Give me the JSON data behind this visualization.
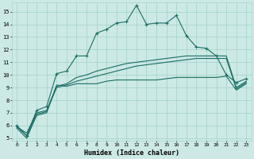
{
  "title": "",
  "xlabel": "Humidex (Indice chaleur)",
  "xlim": [
    -0.5,
    23.5
  ],
  "ylim": [
    4.8,
    15.7
  ],
  "yticks": [
    5,
    6,
    7,
    8,
    9,
    10,
    11,
    12,
    13,
    14,
    15
  ],
  "xticks": [
    0,
    1,
    2,
    3,
    4,
    5,
    6,
    7,
    8,
    9,
    10,
    11,
    12,
    13,
    14,
    15,
    16,
    17,
    18,
    19,
    20,
    21,
    22,
    23
  ],
  "bg_color": "#cce9e5",
  "grid_color": "#aad4ce",
  "line_color": "#1a6e64",
  "series": {
    "max": [
      6.0,
      5.2,
      7.2,
      7.5,
      10.1,
      10.3,
      11.5,
      11.5,
      13.3,
      13.6,
      14.1,
      14.2,
      15.5,
      14.0,
      14.1,
      14.1,
      14.7,
      13.1,
      12.2,
      12.1,
      11.5,
      10.0,
      9.4,
      9.7
    ],
    "min": [
      5.8,
      5.0,
      6.8,
      7.0,
      9.2,
      9.1,
      9.3,
      9.3,
      9.3,
      9.5,
      9.6,
      9.6,
      9.6,
      9.6,
      9.6,
      9.7,
      9.8,
      9.8,
      9.8,
      9.8,
      9.8,
      9.9,
      8.8,
      9.3
    ],
    "mean1": [
      5.9,
      5.4,
      7.0,
      7.2,
      9.1,
      9.3,
      9.8,
      10.0,
      10.3,
      10.5,
      10.7,
      10.9,
      11.0,
      11.1,
      11.2,
      11.3,
      11.4,
      11.5,
      11.5,
      11.5,
      11.5,
      11.5,
      9.0,
      9.5
    ],
    "mean2": [
      5.9,
      5.2,
      6.9,
      7.1,
      9.0,
      9.2,
      9.5,
      9.7,
      9.9,
      10.1,
      10.3,
      10.5,
      10.7,
      10.8,
      10.9,
      11.0,
      11.1,
      11.2,
      11.3,
      11.3,
      11.3,
      11.3,
      8.9,
      9.4
    ]
  }
}
